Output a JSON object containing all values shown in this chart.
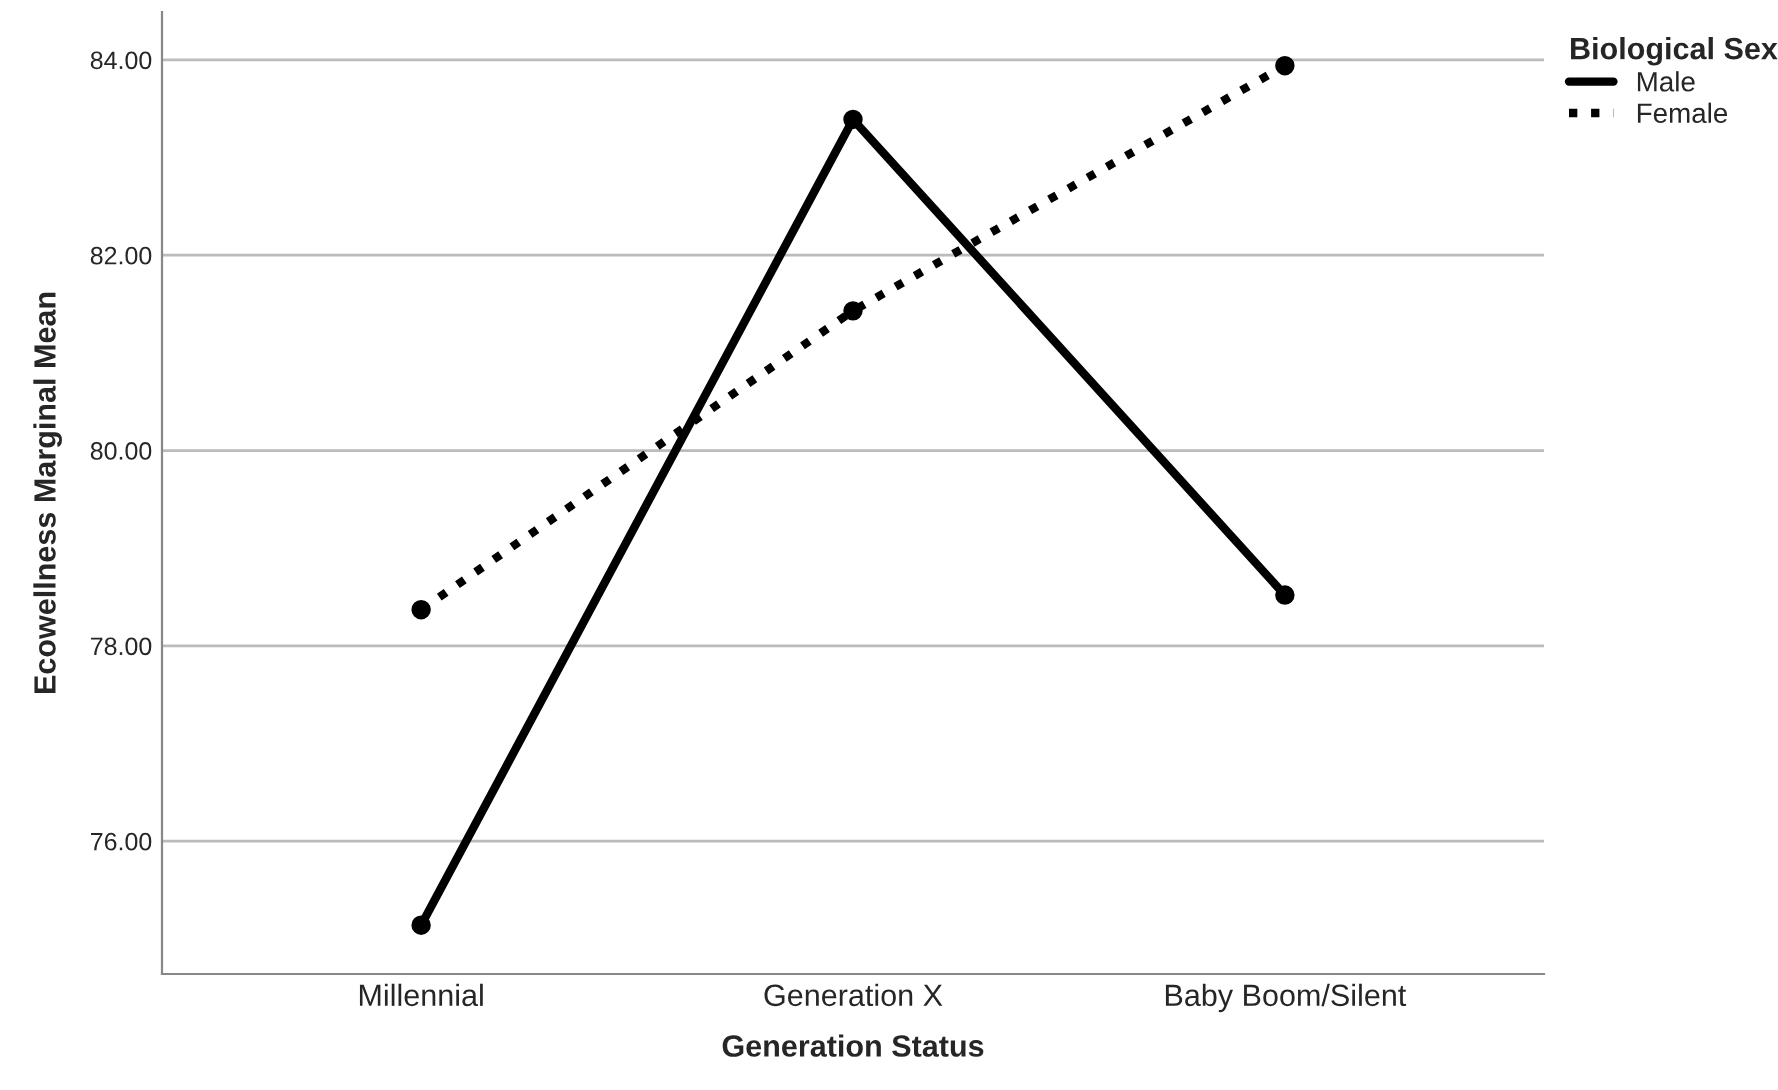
{
  "chart_data": {
    "type": "line",
    "xlabel": "Generation Status",
    "ylabel": "Ecowellness Marginal Mean",
    "legend_title": "Biological Sex",
    "categories": [
      "Millennial",
      "Generation X",
      "Baby Boom/Silent"
    ],
    "series": [
      {
        "name": "Male",
        "color": "#000000",
        "line_style": "solid",
        "values": [
          75.14,
          83.39,
          78.52
        ]
      },
      {
        "name": "Female",
        "color": "#000000",
        "line_style": "dotted",
        "values": [
          78.37,
          81.43,
          83.94
        ]
      }
    ],
    "ylim": [
      74.64,
      84.49
    ],
    "yticks": [
      {
        "value": 76,
        "label": "76.00"
      },
      {
        "value": 78,
        "label": "78.00"
      },
      {
        "value": 80,
        "label": "80.00"
      },
      {
        "value": 82,
        "label": "82.00"
      },
      {
        "value": 84,
        "label": "84.00"
      }
    ],
    "grid": "y",
    "legend": "top right",
    "marker": "circle"
  }
}
